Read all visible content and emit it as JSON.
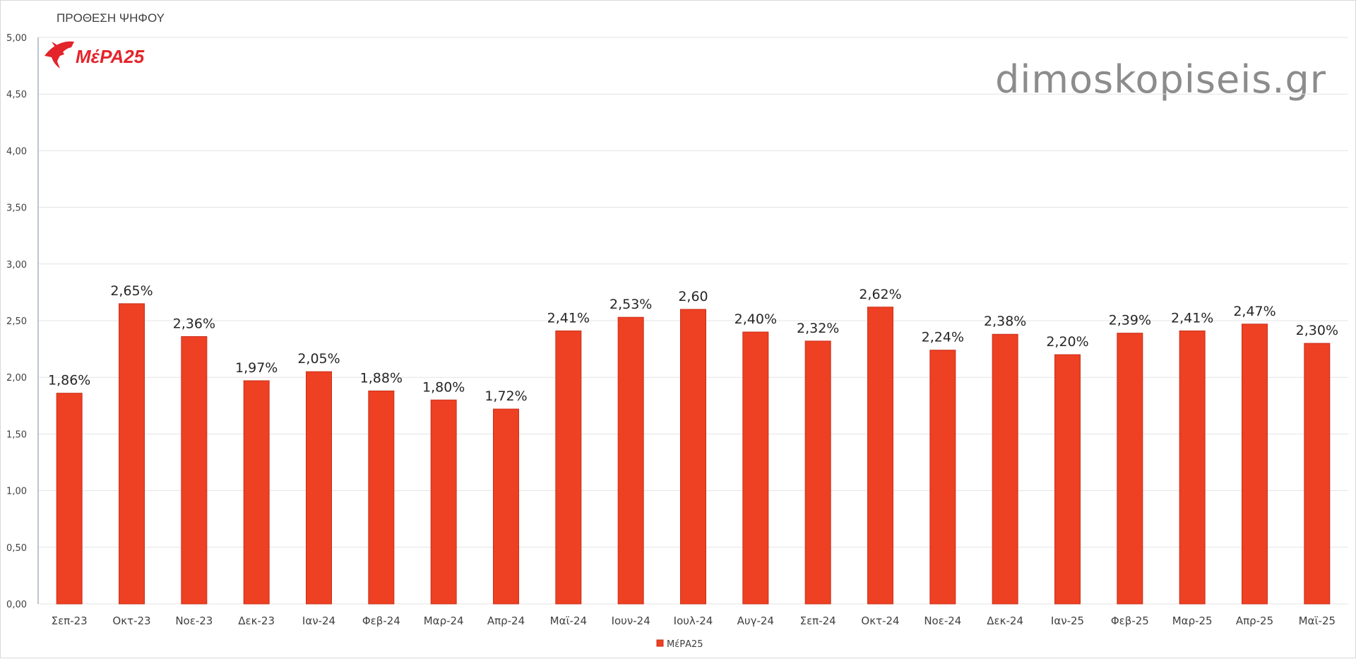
{
  "colors": {
    "bar": "#ee4023",
    "bar_stroke": "#c9301a",
    "grid": "#e3e3e3",
    "axis": "#a6b2c4",
    "logo": "#e3242b"
  },
  "logo": {
    "icon": "swallow-bird-icon",
    "text": "ΜέΡΑ25"
  },
  "watermark": "dimoskopiseis.gr",
  "chart_data": {
    "type": "bar",
    "title": "ΠΡΟΘΕΣΗ ΨΗΦΟΥ",
    "xlabel": "",
    "ylabel": "",
    "ylim": [
      0,
      5
    ],
    "ytick_step": 0.5,
    "ytick_labels": [
      "0,00",
      "0,50",
      "1,00",
      "1,50",
      "2,00",
      "2,50",
      "3,00",
      "3,50",
      "4,00",
      "4,50",
      "5,00"
    ],
    "grid": true,
    "legend_position": "bottom",
    "categories": [
      "Σεπ-23",
      "Οκτ-23",
      "Νοε-23",
      "Δεκ-23",
      "Ιαν-24",
      "Φεβ-24",
      "Μαρ-24",
      "Απρ-24",
      "Μαϊ-24",
      "Ιουν-24",
      "Ιουλ-24",
      "Αυγ-24",
      "Σεπ-24",
      "Οκτ-24",
      "Νοε-24",
      "Δεκ-24",
      "Ιαν-25",
      "Φεβ-25",
      "Μαρ-25",
      "Απρ-25",
      "Μαϊ-25"
    ],
    "series": [
      {
        "name": "ΜέΡΑ25",
        "values": [
          1.86,
          2.65,
          2.36,
          1.97,
          2.05,
          1.88,
          1.8,
          1.72,
          2.41,
          2.53,
          2.6,
          2.4,
          2.32,
          2.62,
          2.24,
          2.38,
          2.2,
          2.39,
          2.41,
          2.47,
          2.3
        ],
        "data_labels": [
          "1,86%",
          "2,65%",
          "2,36%",
          "1,97%",
          "2,05%",
          "1,88%",
          "1,80%",
          "1,72%",
          "2,41%",
          "2,53%",
          "2,60",
          "2,40%",
          "2,32%",
          "2,62%",
          "2,24%",
          "2,38%",
          "2,20%",
          "2,39%",
          "2,41%",
          "2,47%",
          "2,30%"
        ]
      }
    ]
  }
}
